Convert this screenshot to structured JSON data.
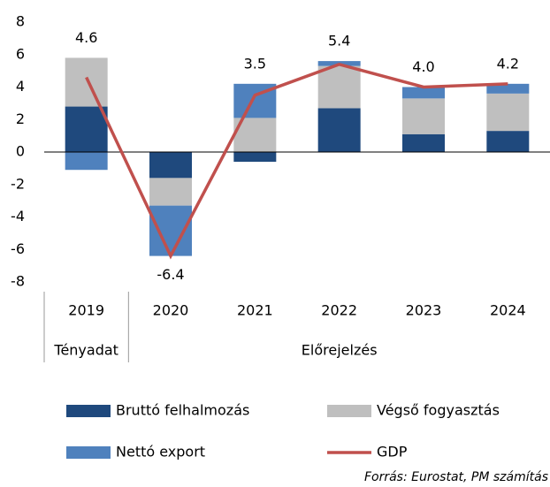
{
  "chart_data": {
    "type": "bar",
    "categories": [
      "2019",
      "2020",
      "2021",
      "2022",
      "2023",
      "2024"
    ],
    "groups": [
      {
        "label": "Tényadat",
        "count": 1
      },
      {
        "label": "Előrejelzés",
        "count": 5
      }
    ],
    "series": [
      {
        "name": "Bruttó felhalmozás",
        "color": "#1f497d",
        "values": [
          2.8,
          -1.6,
          -0.6,
          2.7,
          1.1,
          1.3
        ]
      },
      {
        "name": "Végső fogyasztás",
        "color": "#bfbfbf",
        "values": [
          3.0,
          -1.7,
          2.1,
          2.6,
          2.2,
          2.3
        ]
      },
      {
        "name": "Nettó export",
        "color": "#4f81bd",
        "values": [
          -1.1,
          -3.1,
          2.1,
          0.3,
          0.7,
          0.6
        ]
      },
      {
        "name": "GDP",
        "color": "#c0504d",
        "type": "line",
        "values": [
          4.6,
          -6.4,
          3.5,
          5.4,
          4.0,
          4.2
        ],
        "value_labels": [
          "4.6",
          "-6.4",
          "3.5",
          "5.4",
          "4.0",
          "4.2"
        ]
      }
    ],
    "ylim": [
      -8,
      8
    ],
    "yticks": [
      -8,
      -6,
      -4,
      -2,
      0,
      2,
      4,
      6,
      8
    ],
    "source": "Forrás: Eurostat, PM számítás"
  }
}
